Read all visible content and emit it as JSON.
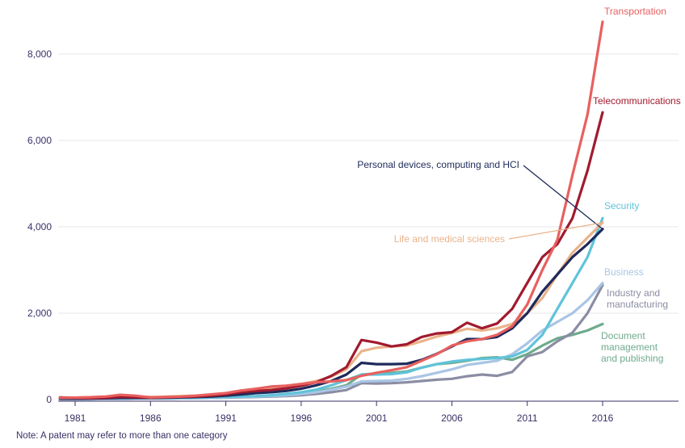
{
  "chart_data": {
    "type": "line",
    "title": "",
    "xlabel": "",
    "ylabel": "",
    "x": [
      1980,
      1981,
      1982,
      1983,
      1984,
      1985,
      1986,
      1987,
      1988,
      1989,
      1990,
      1991,
      1992,
      1993,
      1994,
      1995,
      1996,
      1997,
      1998,
      1999,
      2000,
      2001,
      2002,
      2003,
      2004,
      2005,
      2006,
      2007,
      2008,
      2009,
      2010,
      2011,
      2012,
      2013,
      2014,
      2015,
      2016
    ],
    "xlim": [
      1980,
      2021
    ],
    "ylim": [
      0,
      8600
    ],
    "x_ticks": [
      1981,
      1986,
      1991,
      1996,
      2001,
      2006,
      2011,
      2016
    ],
    "y_ticks": [
      0,
      2000,
      4000,
      6000,
      8000
    ],
    "y_tick_labels": [
      "0",
      "2,000",
      "4,000",
      "6,000",
      "8,000"
    ],
    "grid": "horizontal",
    "legend": "inline labels at line ends",
    "series": [
      {
        "name": "Transportation",
        "color": "#e8605f",
        "values": [
          40,
          45,
          55,
          70,
          110,
          90,
          50,
          60,
          70,
          90,
          120,
          150,
          210,
          250,
          300,
          320,
          360,
          400,
          420,
          450,
          550,
          620,
          680,
          750,
          900,
          1050,
          1250,
          1350,
          1400,
          1500,
          1700,
          2200,
          3000,
          3700,
          5200,
          6600,
          8750
        ]
      },
      {
        "name": "Telecommunications",
        "color": "#a11a2e",
        "values": [
          50,
          40,
          30,
          40,
          60,
          50,
          40,
          50,
          60,
          70,
          90,
          120,
          170,
          200,
          220,
          260,
          320,
          400,
          550,
          750,
          1380,
          1320,
          1230,
          1280,
          1450,
          1530,
          1560,
          1780,
          1650,
          1760,
          2100,
          2700,
          3300,
          3600,
          4200,
          5300,
          6650
        ]
      },
      {
        "name": "Personal devices, computing and HCI",
        "color": "#1e2a5a",
        "values": [
          20,
          20,
          25,
          30,
          40,
          40,
          40,
          45,
          50,
          60,
          70,
          90,
          120,
          150,
          170,
          200,
          250,
          330,
          430,
          580,
          850,
          820,
          820,
          830,
          920,
          1060,
          1230,
          1400,
          1400,
          1450,
          1650,
          2000,
          2500,
          2900,
          3300,
          3600,
          3950
        ]
      },
      {
        "name": "Life and medical sciences",
        "color": "#eab38b",
        "values": [
          40,
          45,
          55,
          60,
          70,
          70,
          60,
          70,
          80,
          90,
          110,
          140,
          190,
          240,
          280,
          310,
          360,
          430,
          530,
          700,
          1120,
          1200,
          1230,
          1250,
          1350,
          1460,
          1540,
          1640,
          1600,
          1650,
          1750,
          2000,
          2350,
          2900,
          3400,
          3750,
          4100
        ]
      },
      {
        "name": "Security",
        "color": "#5fc3d9",
        "values": [
          20,
          20,
          20,
          25,
          30,
          30,
          30,
          35,
          40,
          45,
          50,
          60,
          70,
          80,
          100,
          130,
          170,
          230,
          330,
          450,
          580,
          580,
          590,
          630,
          740,
          820,
          880,
          920,
          940,
          960,
          1000,
          1150,
          1500,
          2100,
          2700,
          3300,
          4200
        ]
      },
      {
        "name": "Business",
        "color": "#a9c5e5",
        "values": [
          10,
          10,
          10,
          15,
          15,
          20,
          20,
          25,
          30,
          35,
          40,
          50,
          60,
          70,
          80,
          100,
          130,
          170,
          230,
          300,
          420,
          430,
          440,
          480,
          540,
          620,
          700,
          800,
          850,
          900,
          1050,
          1300,
          1600,
          1800,
          2000,
          2300,
          2700
        ]
      },
      {
        "name": "Industry and manufacturing",
        "color": "#8b8da3",
        "values": [
          10,
          10,
          10,
          15,
          15,
          20,
          20,
          25,
          30,
          35,
          40,
          45,
          55,
          60,
          70,
          80,
          100,
          130,
          170,
          220,
          380,
          370,
          380,
          400,
          430,
          460,
          480,
          540,
          580,
          550,
          640,
          1000,
          1100,
          1350,
          1550,
          2000,
          2650
        ]
      },
      {
        "name": "Document management and publishing",
        "color": "#6fab8e",
        "values": [
          10,
          10,
          10,
          15,
          15,
          20,
          20,
          25,
          30,
          35,
          40,
          50,
          60,
          70,
          90,
          110,
          150,
          190,
          250,
          330,
          580,
          600,
          620,
          650,
          740,
          820,
          850,
          900,
          960,
          980,
          920,
          1050,
          1250,
          1420,
          1500,
          1600,
          1750
        ]
      }
    ],
    "labels": [
      {
        "series": 0,
        "text": "Transportation"
      },
      {
        "series": 1,
        "text": "Telecommunications"
      },
      {
        "series": 2,
        "text": "Personal devices, computing and HCI"
      },
      {
        "series": 3,
        "text": "Life and medical sciences"
      },
      {
        "series": 4,
        "text": "Security"
      },
      {
        "series": 5,
        "text": "Business"
      },
      {
        "series": 6,
        "text": "Industry and manufacturing"
      },
      {
        "series": 7,
        "text": "Document management and publishing"
      }
    ],
    "note": "Note: A patent may refer to more than one category"
  }
}
